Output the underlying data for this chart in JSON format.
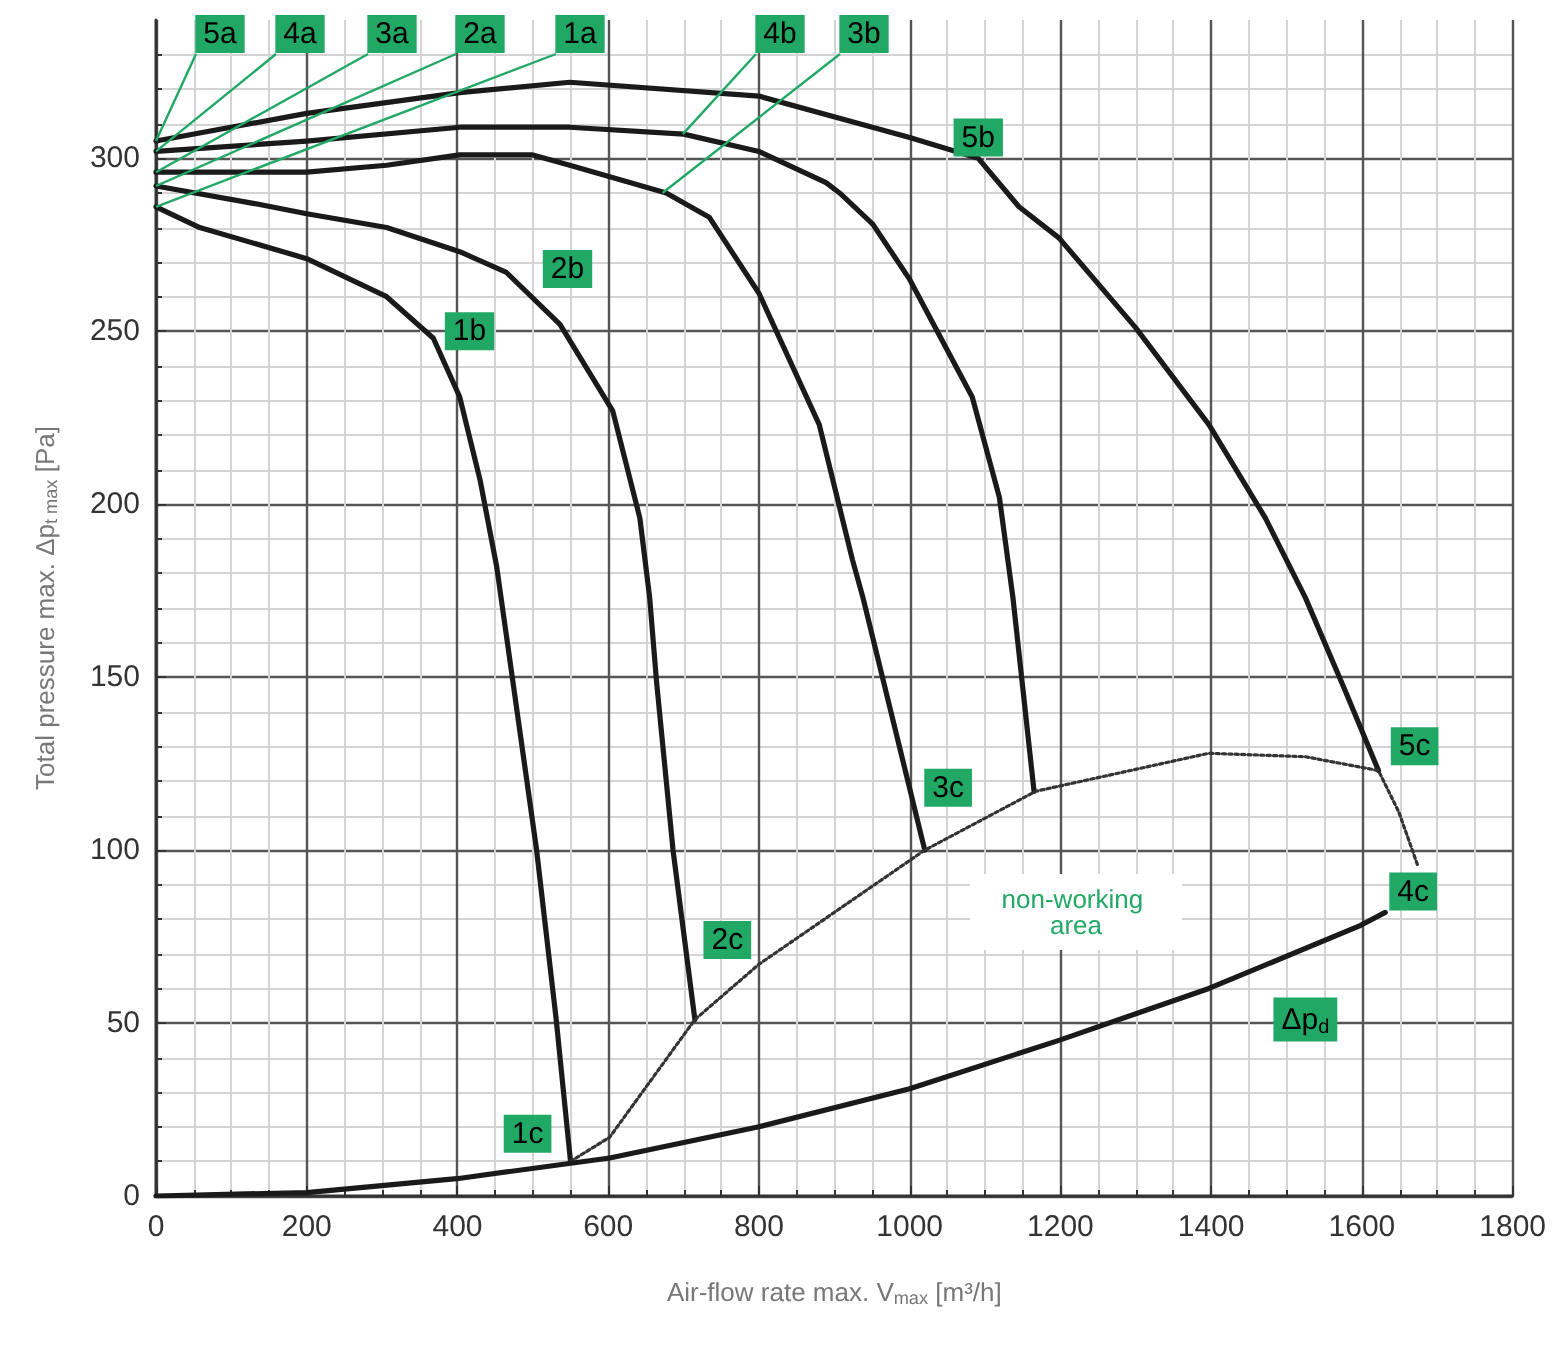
{
  "chart_data": {
    "type": "line",
    "xlabel": "Air-flow rate max. V$_{max}$ [m³/h]",
    "ylabel": "Total pressure max. Δp$_{t max}$ [Pa]",
    "xlim": [
      0,
      1800
    ],
    "xticks": [
      0,
      200,
      400,
      600,
      800,
      1000,
      1200,
      1400,
      1600,
      1800
    ],
    "ylim": [
      0,
      340
    ],
    "yticks": [
      0,
      50,
      100,
      150,
      200,
      250,
      300
    ],
    "grid": true,
    "marker": "none",
    "line_style": "solid",
    "series": [
      {
        "color": "#1a1a1a",
        "x": [
          0,
          58,
          200,
          306,
          368,
          403,
          430,
          452,
          505,
          531,
          550
        ],
        "values": [
          286,
          280,
          271,
          260,
          248,
          231,
          207,
          182,
          100,
          51,
          10
        ]
      },
      {
        "color": "#1a1a1a",
        "x": [
          0,
          129,
          200,
          306,
          403,
          465,
          536,
          606,
          642,
          655,
          664,
          686,
          715
        ],
        "values": [
          292,
          287,
          284,
          280,
          273,
          267,
          252,
          227,
          196,
          173,
          149,
          100,
          51
        ]
      },
      {
        "color": "#1a1a1a",
        "x": [
          0,
          200,
          306,
          403,
          500,
          549,
          677,
          734,
          800,
          880,
          924,
          938,
          1020
        ],
        "values": [
          296,
          296,
          298,
          301,
          301,
          298,
          290,
          283,
          261,
          223,
          184,
          173,
          100
        ]
      },
      {
        "color": "#1a1a1a",
        "x": [
          0,
          200,
          403,
          549,
          700,
          800,
          889,
          907,
          951,
          1000,
          1083,
          1119,
          1137,
          1165
        ],
        "values": [
          302,
          305,
          309,
          309,
          307,
          302,
          293,
          290,
          281,
          265,
          231,
          202,
          173,
          117
        ]
      },
      {
        "color": "#1a1a1a",
        "x": [
          0,
          200,
          403,
          549,
          800,
          1000,
          1091,
          1145,
          1198,
          1300,
          1397,
          1472,
          1525,
          1578,
          1622
        ],
        "values": [
          305,
          313,
          319,
          322,
          318,
          306,
          300,
          286,
          277,
          251,
          223,
          196,
          173,
          146,
          123
        ]
      },
      {
        "color": "#333333",
        "line_style": "dotted",
        "x": [
          550,
          602,
          715,
          800,
          1020,
          1167,
          1397,
          1525,
          1622,
          1649,
          1675
        ],
        "values": [
          10,
          17,
          51,
          67,
          100,
          117,
          128,
          127,
          123,
          111,
          95
        ]
      },
      {
        "color": "#1a1a1a",
        "x": [
          0,
          200,
          399,
          602,
          800,
          1000,
          1198,
          1397,
          1596,
          1631
        ],
        "values": [
          0,
          1,
          5,
          11,
          20,
          31,
          45,
          60,
          78,
          82
        ]
      }
    ],
    "annotations": [
      {
        "text": "5a",
        "x": 0,
        "y": 305
      },
      {
        "text": "4a",
        "x": 0,
        "y": 302
      },
      {
        "text": "3a",
        "x": 0,
        "y": 296
      },
      {
        "text": "2a",
        "x": 0,
        "y": 292
      },
      {
        "text": "1a",
        "x": 0,
        "y": 286
      },
      {
        "text": "4b",
        "x": 699,
        "y": 307
      },
      {
        "text": "3b",
        "x": 672,
        "y": 290
      },
      {
        "text": "2b",
        "x": 546,
        "y": 268
      },
      {
        "text": "1b",
        "x": 416,
        "y": 250
      },
      {
        "text": "5b",
        "x": 1091,
        "y": 306
      },
      {
        "text": "1c",
        "x": 493,
        "y": 18
      },
      {
        "text": "2c",
        "x": 758,
        "y": 74
      },
      {
        "text": "3c",
        "x": 1051,
        "y": 118
      },
      {
        "text": "5c",
        "x": 1670,
        "y": 130
      },
      {
        "text": "4c",
        "x": 1668,
        "y": 88
      },
      {
        "text": "Δp$_{d}$",
        "x": 1525,
        "y": 51
      },
      "non-working area"
    ]
  }
}
